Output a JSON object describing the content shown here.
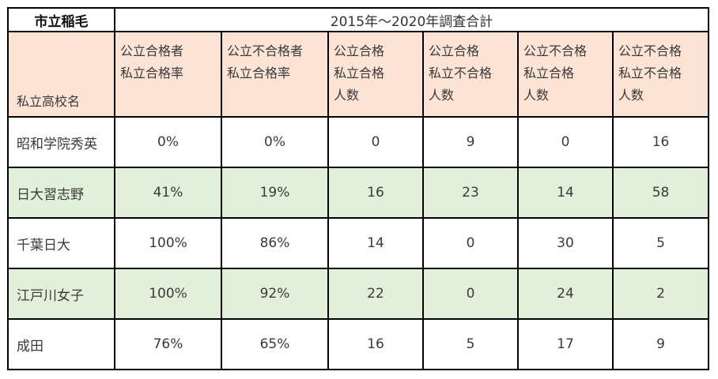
{
  "school": "市立稲毛",
  "period": "2015年～2020年調査合計",
  "header": {
    "name_col": "私立高校名",
    "cols": [
      [
        "公立合格者",
        "私立合格率"
      ],
      [
        "公立不合格者",
        "私立合格率"
      ],
      [
        "公立合格",
        "私立合格",
        "人数"
      ],
      [
        "公立合格",
        "私立不合格",
        "人数"
      ],
      [
        "公立不合格",
        "私立合格",
        "人数"
      ],
      [
        "公立不合格",
        "私立不合格",
        "人数"
      ]
    ]
  },
  "rows": [
    {
      "name": "昭和学院秀英",
      "values": [
        "0%",
        "0%",
        "0",
        "9",
        "0",
        "16"
      ],
      "highlight": false
    },
    {
      "name": "日大習志野",
      "values": [
        "41%",
        "19%",
        "16",
        "23",
        "14",
        "58"
      ],
      "highlight": true
    },
    {
      "name": "千葉日大",
      "values": [
        "100%",
        "86%",
        "14",
        "0",
        "30",
        "5"
      ],
      "highlight": false
    },
    {
      "name": "江戸川女子",
      "values": [
        "100%",
        "92%",
        "22",
        "0",
        "24",
        "2"
      ],
      "highlight": true
    },
    {
      "name": "成田",
      "values": [
        "76%",
        "65%",
        "16",
        "5",
        "17",
        "9"
      ],
      "highlight": false
    }
  ],
  "colors": {
    "header_bg": "#fbe3d6",
    "highlight_bg": "#e2efda"
  }
}
